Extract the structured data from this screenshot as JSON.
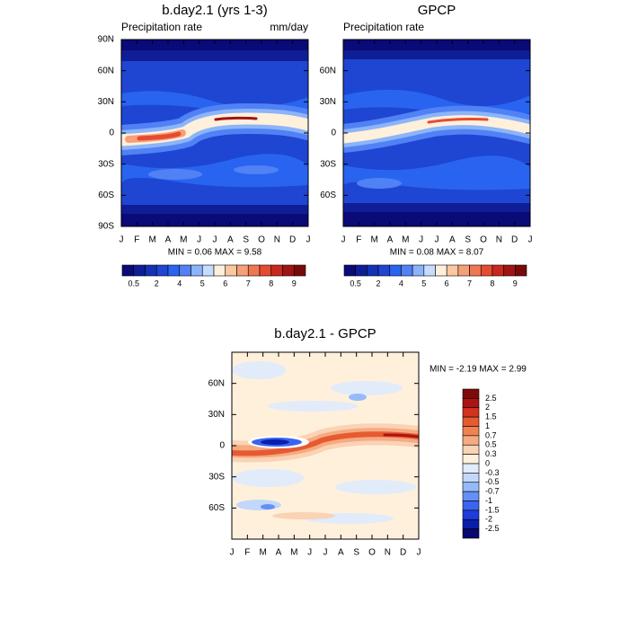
{
  "chart_data": [
    {
      "type": "contour",
      "title": "b.day2.1 (yrs 1-3)",
      "subtitle_left": "Precipitation rate",
      "subtitle_right": "mm/day",
      "categories": [
        "J",
        "F",
        "M",
        "A",
        "M",
        "J",
        "J",
        "A",
        "S",
        "O",
        "N",
        "D",
        "J"
      ],
      "ylim": [
        -90,
        90
      ],
      "yticks": [
        {
          "value": 90,
          "label": "90N"
        },
        {
          "value": 60,
          "label": "60N"
        },
        {
          "value": 30,
          "label": "30N"
        },
        0,
        {
          "value": -30,
          "label": "30S"
        },
        {
          "value": -60,
          "label": "60S"
        },
        {
          "value": -90,
          "label": "90S"
        }
      ],
      "stats": "MIN =  0.06 MAX =  9.58",
      "colorbar": {
        "orientation": "horizontal",
        "colors": [
          "#0a0a78",
          "#0f1e96",
          "#1432b4",
          "#1e46d2",
          "#2864f0",
          "#5082f5",
          "#8cb4fa",
          "#c8dcff",
          "#fff0dc",
          "#fac8a0",
          "#f5a078",
          "#f07850",
          "#e64b32",
          "#c8281e",
          "#a01414",
          "#780a0a"
        ],
        "ticks": [
          0.5,
          2,
          4,
          5,
          6,
          7,
          8,
          9
        ]
      }
    },
    {
      "type": "contour",
      "title": "GPCP",
      "subtitle_left": "Precipitation rate",
      "categories": [
        "J",
        "F",
        "M",
        "A",
        "M",
        "J",
        "J",
        "A",
        "S",
        "O",
        "N",
        "D",
        "J"
      ],
      "ylim": [
        -90,
        90
      ],
      "yticks": [
        {
          "value": 60,
          "label": "60N"
        },
        {
          "value": 30,
          "label": "30N"
        },
        0,
        {
          "value": -30,
          "label": "30S"
        },
        {
          "value": -60,
          "label": "60S"
        }
      ],
      "stats": "MIN =  0.08 MAX =  8.07",
      "colorbar": {
        "orientation": "horizontal",
        "colors": [
          "#0a0a78",
          "#0f1e96",
          "#1432b4",
          "#1e46d2",
          "#2864f0",
          "#5082f5",
          "#8cb4fa",
          "#c8dcff",
          "#fff0dc",
          "#fac8a0",
          "#f5a078",
          "#f07850",
          "#e64b32",
          "#c8281e",
          "#a01414",
          "#780a0a"
        ],
        "ticks": [
          0.5,
          2,
          4,
          5,
          6,
          7,
          8,
          9
        ]
      }
    },
    {
      "type": "contour",
      "title": "b.day2.1 - GPCP",
      "categories": [
        "J",
        "F",
        "M",
        "A",
        "M",
        "J",
        "J",
        "A",
        "S",
        "O",
        "N",
        "D",
        "J"
      ],
      "ylim": [
        -90,
        90
      ],
      "yticks": [
        {
          "value": 60,
          "label": "60N"
        },
        {
          "value": 30,
          "label": "30N"
        },
        0,
        {
          "value": -30,
          "label": "30S"
        },
        {
          "value": -60,
          "label": "60S"
        }
      ],
      "stats": "MIN =  -2.19 MAX =   2.99",
      "colorbar": {
        "orientation": "vertical",
        "colors": [
          "#800a0a",
          "#aa1414",
          "#d2321e",
          "#e65a32",
          "#f08250",
          "#f5aa82",
          "#fad2b4",
          "#fff0dc",
          "#e1ebfa",
          "#c3d7fa",
          "#96b9fa",
          "#6490f5",
          "#3c64f0",
          "#1e3cdc",
          "#0a1eaa",
          "#08086e"
        ],
        "ticks": [
          2.5,
          2,
          1.5,
          1,
          0.7,
          0.5,
          0.3,
          0,
          -0.3,
          -0.5,
          -0.7,
          -1,
          -1.5,
          -2,
          -2.5
        ]
      }
    }
  ]
}
